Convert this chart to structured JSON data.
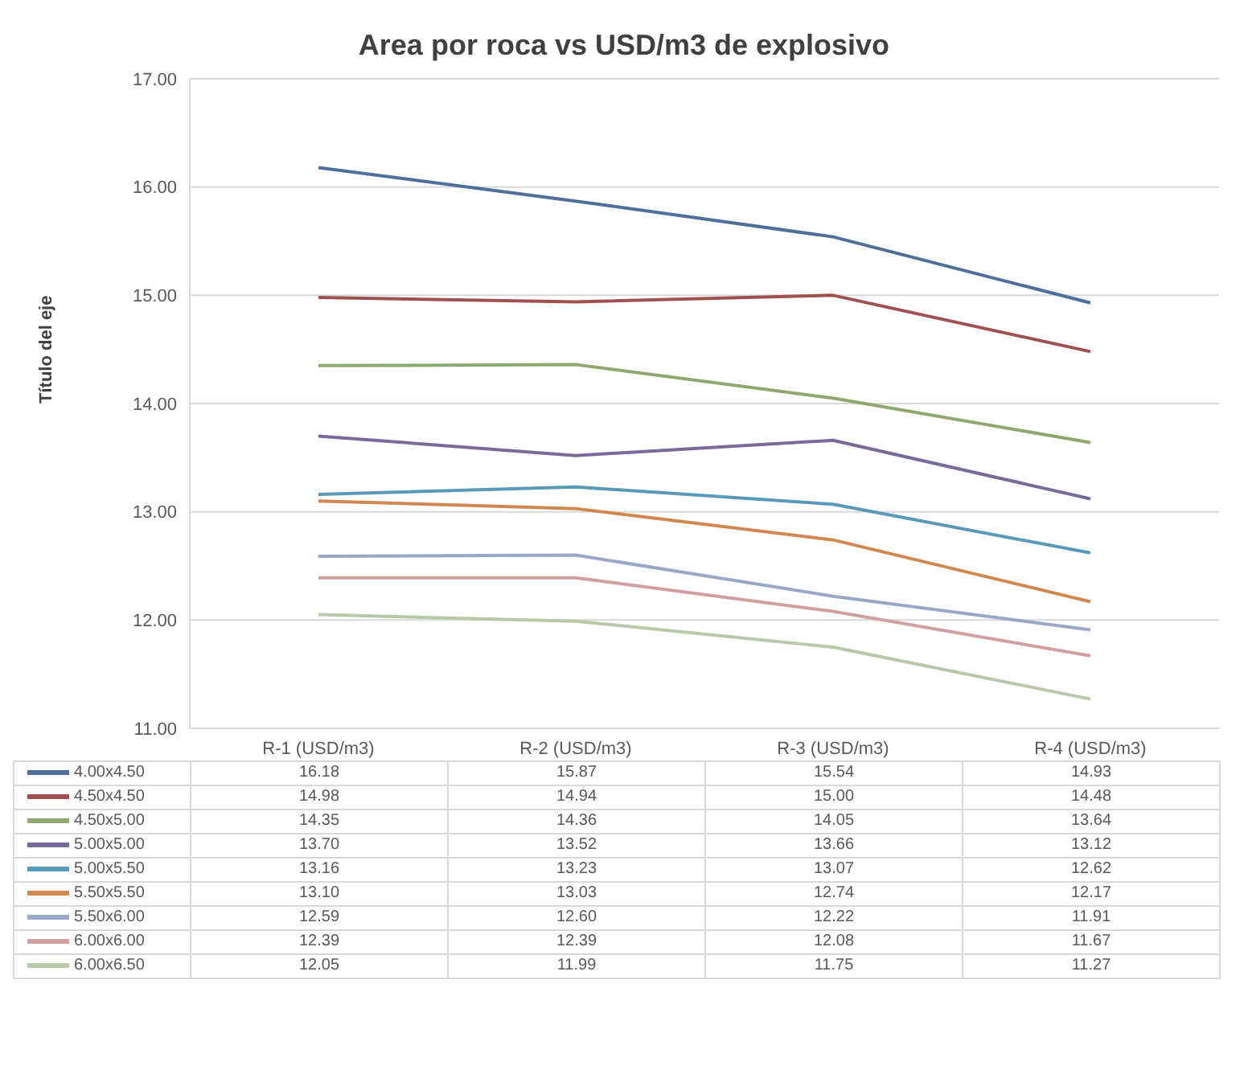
{
  "chart_data": {
    "type": "line",
    "title": "Area por roca vs USD/m3 de explosivo",
    "ylabel": "Título del eje",
    "categories": [
      "R-1 (USD/m3)",
      "R-2 (USD/m3)",
      "R-3 (USD/m3)",
      "R-4 (USD/m3)"
    ],
    "series": [
      {
        "name": "4.00x4.50",
        "color": "#4f6f9a",
        "values": [
          16.18,
          15.87,
          15.54,
          14.93
        ],
        "value_labels": [
          "16.18",
          "15.87",
          "15.54",
          "14.93"
        ]
      },
      {
        "name": "4.50x4.50",
        "color": "#a05050",
        "values": [
          14.98,
          14.94,
          15.0,
          14.48
        ],
        "value_labels": [
          "14.98",
          "14.94",
          "15.00",
          "14.48"
        ]
      },
      {
        "name": "4.50x5.00",
        "color": "#8fa870",
        "values": [
          14.35,
          14.36,
          14.05,
          13.64
        ],
        "value_labels": [
          "14.35",
          "14.36",
          "14.05",
          "13.64"
        ]
      },
      {
        "name": "5.00x5.00",
        "color": "#7a6a9a",
        "values": [
          13.7,
          13.52,
          13.66,
          13.12
        ],
        "value_labels": [
          "13.70",
          "13.52",
          "13.66",
          "13.12"
        ]
      },
      {
        "name": "5.00x5.50",
        "color": "#5a9ab8",
        "values": [
          13.16,
          13.23,
          13.07,
          12.62
        ],
        "value_labels": [
          "13.16",
          "13.23",
          "13.07",
          "12.62"
        ]
      },
      {
        "name": "5.50x5.50",
        "color": "#d08850",
        "values": [
          13.1,
          13.03,
          12.74,
          12.17
        ],
        "value_labels": [
          "13.10",
          "13.03",
          "12.74",
          "12.17"
        ]
      },
      {
        "name": "5.50x6.00",
        "color": "#9aa8c8",
        "values": [
          12.59,
          12.6,
          12.22,
          11.91
        ],
        "value_labels": [
          "12.59",
          "12.60",
          "12.22",
          "11.91"
        ]
      },
      {
        "name": "6.00x6.00",
        "color": "#d0a0a0",
        "values": [
          12.39,
          12.39,
          12.08,
          11.67
        ],
        "value_labels": [
          "12.39",
          "12.39",
          "12.08",
          "11.67"
        ]
      },
      {
        "name": "6.00x6.50",
        "color": "#b8c8a8",
        "values": [
          12.05,
          11.99,
          11.75,
          11.27
        ],
        "value_labels": [
          "12.05",
          "11.99",
          "11.75",
          "11.27"
        ]
      }
    ],
    "ylim": [
      11,
      17
    ],
    "yticks": [
      {
        "value": 11,
        "label": "11.00"
      },
      {
        "value": 12,
        "label": "12.00"
      },
      {
        "value": 13,
        "label": "13.00"
      },
      {
        "value": 14,
        "label": "14.00"
      },
      {
        "value": 15,
        "label": "15.00"
      },
      {
        "value": 16,
        "label": "16.00"
      },
      {
        "value": 17,
        "label": "17.00"
      }
    ],
    "grid": "y",
    "legend": "bottom left",
    "marker": "none",
    "line_style": "solid"
  }
}
